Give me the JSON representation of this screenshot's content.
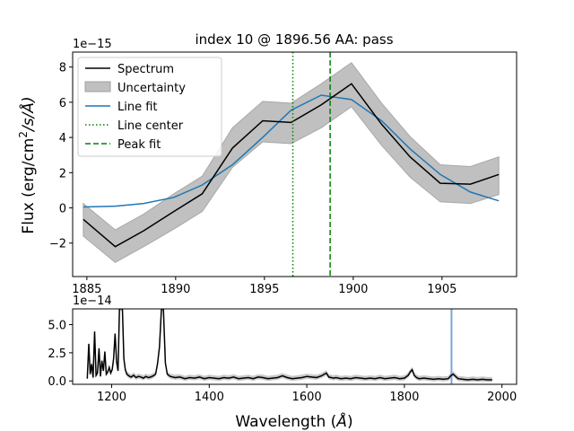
{
  "chart_data": [
    {
      "type": "line",
      "title": "index 10 @ 1896.56 AA: pass",
      "ylabel_parts": {
        "pre": "Flux (erg/cm",
        "sup": "2",
        "post": "/s/Å)"
      },
      "xlabel": "",
      "offset_label": "1e−15",
      "xlim": [
        1884.2,
        1909.2
      ],
      "ylim": [
        -3.9,
        8.85
      ],
      "x_ticks": [
        1885,
        1890,
        1895,
        1900,
        1905
      ],
      "y_ticks": [
        -2,
        0,
        2,
        4,
        6,
        8
      ],
      "legend_position": "upper-left",
      "legend": [
        "Spectrum",
        "Uncertainty",
        "Line fit",
        "Line center",
        "Peak fit"
      ],
      "colors": {
        "spectrum": "#000000",
        "uncertainty": "#c0c0c0",
        "fit": "#1f77b4",
        "center": "#008000",
        "peak": "#008000"
      },
      "spectrum": {
        "x": [
          1884.8,
          1886.6,
          1888.2,
          1889.9,
          1891.5,
          1893.2,
          1894.9,
          1896.5,
          1898.2,
          1899.9,
          1901.6,
          1903.2,
          1904.9,
          1906.6,
          1908.2
        ],
        "y": [
          -0.65,
          -2.2,
          -1.3,
          -0.2,
          0.8,
          3.4,
          4.95,
          4.85,
          5.85,
          7.05,
          4.75,
          2.9,
          1.4,
          1.35,
          1.9
        ]
      },
      "uncertainty": {
        "lower": [
          -1.6,
          -3.1,
          -2.2,
          -1.2,
          -0.2,
          2.3,
          3.75,
          3.65,
          4.55,
          5.75,
          3.55,
          1.75,
          0.35,
          0.25,
          0.75
        ],
        "upper": [
          0.25,
          -1.25,
          -0.35,
          0.8,
          1.8,
          4.55,
          6.05,
          5.95,
          7.05,
          8.25,
          5.95,
          4.05,
          2.45,
          2.35,
          2.9
        ]
      },
      "line_fit": {
        "x": [
          1884.8,
          1886.6,
          1888.2,
          1889.9,
          1891.5,
          1893.2,
          1894.9,
          1896.5,
          1898.2,
          1899.9,
          1901.6,
          1903.2,
          1904.9,
          1906.6,
          1908.2
        ],
        "y": [
          0.05,
          0.1,
          0.25,
          0.6,
          1.3,
          2.45,
          4.0,
          5.55,
          6.4,
          6.15,
          4.95,
          3.35,
          1.9,
          0.9,
          0.4
        ]
      },
      "line_center": 1896.6,
      "peak_fit": 1898.7
    },
    {
      "type": "line",
      "xlabel_parts": {
        "pre": "Wavelength (",
        "unit": "Å",
        "post": ")"
      },
      "offset_label": "1e−14",
      "xlim": [
        1120,
        2030
      ],
      "ylim": [
        -0.3,
        6.4
      ],
      "x_ticks": [
        1200,
        1400,
        1600,
        1800,
        2000
      ],
      "y_ticks": [
        0.0,
        2.5,
        5.0
      ],
      "y_tick_labels": [
        "0.0",
        "2.5",
        "5.0"
      ],
      "highlight_wavelength": 1896.56,
      "highlight_color": "#7aa6d6",
      "spectrum": {
        "x": [
          1150,
          1153,
          1156,
          1159,
          1162,
          1165,
          1168,
          1171,
          1174,
          1177,
          1180,
          1183,
          1186,
          1189,
          1192,
          1195,
          1198,
          1201,
          1204,
          1207,
          1210,
          1213,
          1216,
          1219,
          1222,
          1225,
          1228,
          1231,
          1234,
          1237,
          1240,
          1245,
          1250,
          1255,
          1260,
          1265,
          1270,
          1275,
          1280,
          1285,
          1290,
          1294,
          1298,
          1302,
          1304,
          1306,
          1308,
          1310,
          1314,
          1320,
          1330,
          1340,
          1350,
          1360,
          1370,
          1380,
          1390,
          1400,
          1410,
          1420,
          1430,
          1440,
          1450,
          1460,
          1470,
          1480,
          1490,
          1500,
          1510,
          1520,
          1530,
          1540,
          1550,
          1560,
          1570,
          1580,
          1590,
          1600,
          1610,
          1620,
          1630,
          1640,
          1645,
          1650,
          1655,
          1660,
          1670,
          1680,
          1690,
          1700,
          1710,
          1720,
          1730,
          1740,
          1750,
          1760,
          1770,
          1780,
          1790,
          1800,
          1808,
          1812,
          1816,
          1820,
          1825,
          1830,
          1840,
          1850,
          1860,
          1870,
          1880,
          1890,
          1896,
          1900,
          1910,
          1920,
          1930,
          1940,
          1950,
          1960,
          1970,
          1980
        ],
        "y": [
          0.2,
          3.3,
          0.6,
          1.5,
          0.3,
          4.4,
          0.5,
          0.7,
          2.9,
          0.4,
          1.8,
          0.9,
          2.6,
          0.6,
          0.8,
          1.2,
          0.7,
          1.0,
          2.0,
          4.2,
          1.7,
          0.9,
          6.4,
          6.4,
          6.4,
          2.0,
          1.0,
          0.6,
          0.5,
          0.4,
          0.35,
          0.5,
          0.3,
          0.4,
          0.35,
          0.25,
          0.4,
          0.3,
          0.35,
          0.45,
          0.6,
          1.5,
          3.0,
          6.4,
          6.4,
          6.4,
          4.0,
          1.6,
          0.6,
          0.4,
          0.3,
          0.35,
          0.2,
          0.3,
          0.25,
          0.35,
          0.2,
          0.3,
          0.25,
          0.2,
          0.3,
          0.25,
          0.35,
          0.2,
          0.25,
          0.3,
          0.2,
          0.35,
          0.3,
          0.2,
          0.25,
          0.3,
          0.45,
          0.3,
          0.2,
          0.25,
          0.3,
          0.4,
          0.35,
          0.3,
          0.45,
          0.7,
          0.35,
          0.3,
          0.25,
          0.3,
          0.2,
          0.25,
          0.2,
          0.3,
          0.25,
          0.2,
          0.25,
          0.2,
          0.3,
          0.2,
          0.25,
          0.3,
          0.2,
          0.25,
          0.5,
          0.8,
          1.0,
          0.5,
          0.3,
          0.2,
          0.25,
          0.2,
          0.15,
          0.2,
          0.15,
          0.2,
          0.5,
          0.6,
          0.2,
          0.15,
          0.1,
          0.15,
          0.1,
          0.15,
          0.1,
          0.1
        ]
      }
    }
  ]
}
